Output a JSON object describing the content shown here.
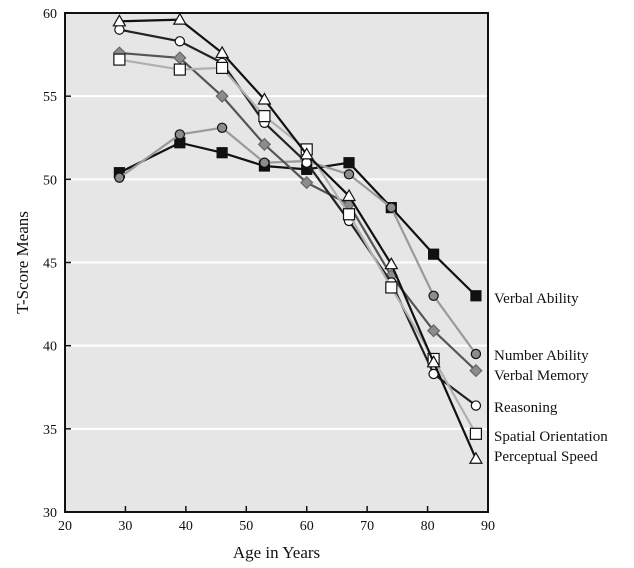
{
  "chart_data": {
    "type": "line",
    "xlabel": "Age in Years",
    "ylabel": "T-Score Means",
    "xlim": [
      20,
      90
    ],
    "ylim": [
      30,
      60
    ],
    "xticks": [
      20,
      30,
      40,
      50,
      60,
      70,
      80,
      90
    ],
    "yticks": [
      30,
      35,
      40,
      45,
      50,
      55,
      60
    ],
    "grid": "horizontal white lines at y ticks",
    "legend": "right, labels at series end points",
    "plot_background": "#e6e6e6",
    "series": [
      {
        "name": "Verbal Ability",
        "marker": "filled-square",
        "line_color": "#111111",
        "marker_fill": "#111111",
        "x": [
          29,
          39,
          46,
          53,
          60,
          67,
          74,
          81,
          88
        ],
        "y": [
          50.4,
          52.2,
          51.6,
          50.8,
          50.6,
          51.0,
          48.3,
          45.5,
          43.0
        ]
      },
      {
        "name": "Number Ability",
        "marker": "filled-circle",
        "line_color": "#9a9a9a",
        "marker_fill": "#8c8c8c",
        "x": [
          29,
          39,
          46,
          53,
          60,
          67,
          74,
          81,
          88
        ],
        "y": [
          50.1,
          52.7,
          53.1,
          51.0,
          51.1,
          50.3,
          48.3,
          43.0,
          39.5
        ]
      },
      {
        "name": "Verbal Memory",
        "marker": "diamond",
        "line_color": "#555555",
        "marker_fill": "#8c8c8c",
        "x": [
          29,
          39,
          46,
          53,
          60,
          67,
          74,
          81,
          88
        ],
        "y": [
          57.6,
          57.3,
          55.0,
          52.1,
          49.8,
          48.5,
          44.2,
          40.9,
          38.5
        ]
      },
      {
        "name": "Reasoning",
        "marker": "open-circle",
        "line_color": "#222222",
        "marker_fill": "#ffffff",
        "x": [
          29,
          39,
          46,
          53,
          60,
          67,
          74,
          81,
          88
        ],
        "y": [
          59.0,
          58.3,
          57.0,
          53.4,
          51.0,
          47.5,
          43.8,
          38.3,
          36.4
        ]
      },
      {
        "name": "Spatial Orientation",
        "marker": "open-square",
        "line_color": "#b0b0b0",
        "marker_fill": "#ffffff",
        "x": [
          29,
          39,
          46,
          53,
          60,
          67,
          74,
          81,
          88
        ],
        "y": [
          57.2,
          56.6,
          56.7,
          53.8,
          51.8,
          47.9,
          43.5,
          39.2,
          34.7
        ]
      },
      {
        "name": "Perceptual Speed",
        "marker": "open-triangle",
        "line_color": "#111111",
        "marker_fill": "#ffffff",
        "x": [
          29,
          39,
          46,
          53,
          60,
          67,
          74,
          81,
          88
        ],
        "y": [
          59.5,
          59.6,
          57.6,
          54.8,
          51.5,
          49.0,
          44.9,
          39.0,
          33.2
        ]
      }
    ]
  }
}
